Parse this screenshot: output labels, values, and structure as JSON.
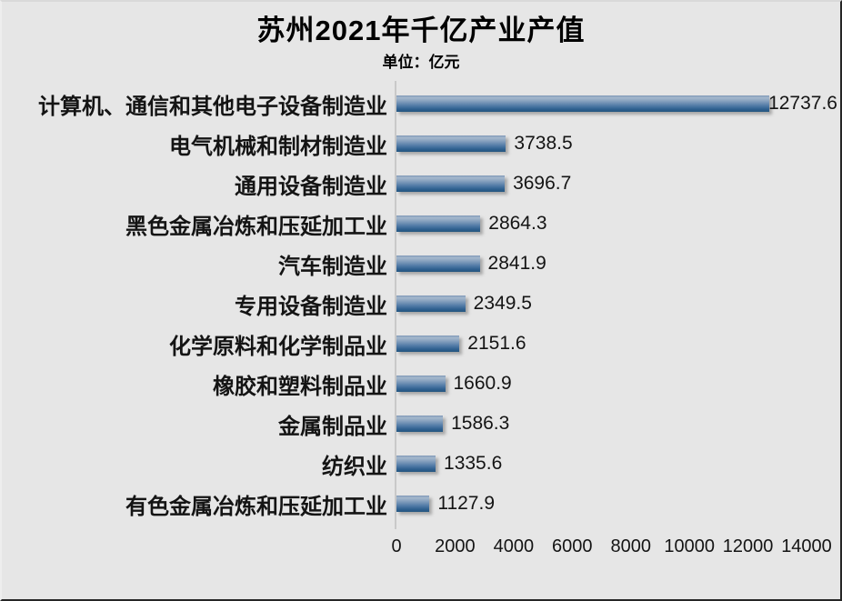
{
  "header": {
    "title": "苏州2021年千亿产业产值",
    "unit_label": "单位：亿元"
  },
  "chart_data": {
    "type": "bar",
    "orientation": "horizontal",
    "title": "苏州2021年千亿产业产值",
    "subtitle": "单位：亿元",
    "xlabel": "",
    "ylabel": "",
    "categories": [
      "计算机、通信和其他电子设备制造业",
      "电气机械和制材制造业",
      "通用设备制造业",
      "黑色金属冶炼和压延加工业",
      "汽车制造业",
      "专用设备制造业",
      "化学原料和化学制品业",
      "橡胶和塑料制品业",
      "金属制品业",
      "纺织业",
      "有色金属冶炼和压延加工业"
    ],
    "values": [
      12737.6,
      3738.5,
      3696.7,
      2864.3,
      2841.9,
      2349.5,
      2151.6,
      1660.9,
      1586.3,
      1335.6,
      1127.9
    ],
    "value_labels": [
      "12737.6",
      "3738.5",
      "3696.7",
      "2864.3",
      "2841.9",
      "2349.5",
      "2151.6",
      "1660.9",
      "1586.3",
      "1335.6",
      "1127.9"
    ],
    "xlim": [
      0,
      14000
    ],
    "x_ticks": [
      0,
      2000,
      4000,
      6000,
      8000,
      10000,
      12000,
      14000
    ],
    "grid": false,
    "legend": false,
    "colors": {
      "background": "#e6e6e6",
      "bar_gradient_top": "#a5b8cd",
      "bar_gradient_bottom": "#255680",
      "axis_line": "#c9c9c9",
      "text": "#141414"
    }
  }
}
